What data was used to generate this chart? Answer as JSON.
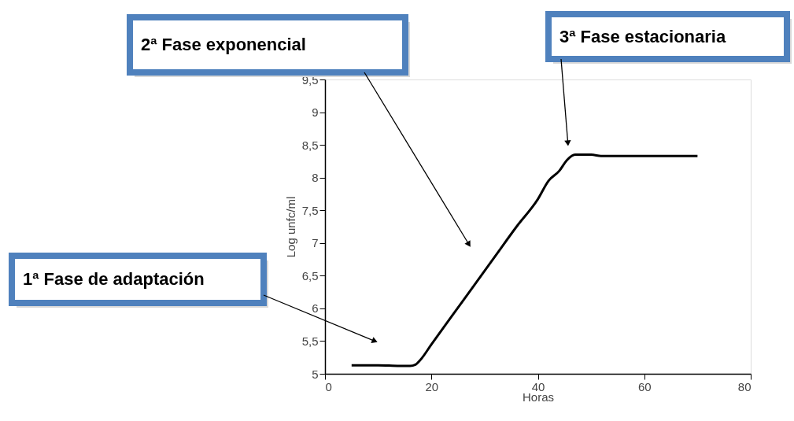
{
  "chart_data": {
    "type": "line",
    "xlabel": "Horas",
    "ylabel": "Log unfc/ml",
    "x": [
      5,
      10,
      14,
      16,
      17,
      18,
      20,
      24,
      28,
      32,
      36,
      40,
      42,
      44,
      45.5,
      47,
      50,
      52,
      60,
      70
    ],
    "series": [
      {
        "color": "#000000",
        "values": [
          5.13,
          5.13,
          5.12,
          5.12,
          5.14,
          5.22,
          5.45,
          5.9,
          6.35,
          6.8,
          7.25,
          7.67,
          7.95,
          8.1,
          8.27,
          8.35,
          8.35,
          8.33,
          8.33,
          8.33
        ]
      }
    ],
    "xlim": [
      0,
      80
    ],
    "xticks": [
      0,
      20,
      40,
      60,
      80
    ],
    "ylim": [
      5,
      9.5
    ],
    "yticks": [
      5,
      {
        "value": 5.5,
        "label": "5,5"
      },
      6,
      {
        "value": 6.5,
        "label": "6,5"
      },
      7,
      {
        "value": 7.5,
        "label": "7,5"
      },
      8,
      {
        "value": 8.5,
        "label": "8,5"
      },
      9,
      {
        "value": 9.5,
        "label": "9,5"
      }
    ],
    "grid": false,
    "legend": false,
    "marker": "none",
    "line_style": "solid",
    "annotations": [
      "1ª Fase de adaptación",
      "2ª Fase exponencial",
      "3ª Fase estacionaria"
    ]
  }
}
